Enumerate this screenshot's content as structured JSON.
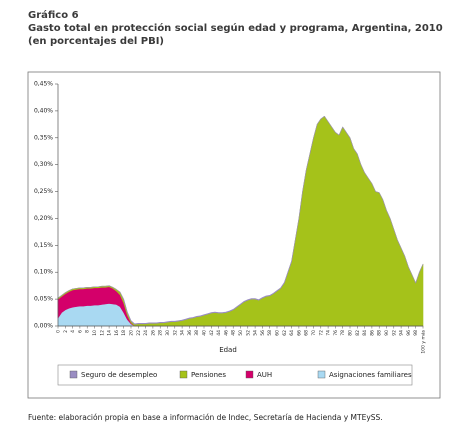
{
  "chart_data": {
    "type": "stacked-area",
    "figure_label": "Gráfico 6",
    "title": "Gasto total en protección social según edad y programa, Argentina, 2010",
    "subtitle": "(en porcentajes del PBI)",
    "xlabel": "Edad",
    "source": "Fuente: elaboración propia en base a información de Indec, Secretaría de Hacienda y MTEySS.",
    "x": [
      0,
      1,
      2,
      3,
      4,
      5,
      6,
      7,
      8,
      9,
      10,
      11,
      12,
      13,
      14,
      15,
      16,
      17,
      18,
      19,
      20,
      21,
      22,
      23,
      24,
      25,
      26,
      27,
      28,
      29,
      30,
      31,
      32,
      33,
      34,
      35,
      36,
      37,
      38,
      39,
      40,
      41,
      42,
      43,
      44,
      45,
      46,
      47,
      48,
      49,
      50,
      51,
      52,
      53,
      54,
      55,
      56,
      57,
      58,
      59,
      60,
      61,
      62,
      63,
      64,
      65,
      66,
      67,
      68,
      69,
      70,
      71,
      72,
      73,
      74,
      75,
      76,
      77,
      78,
      79,
      80,
      81,
      82,
      83,
      84,
      85,
      86,
      87,
      88,
      89,
      90,
      91,
      92,
      93,
      94,
      95,
      96,
      97,
      98,
      99,
      100
    ],
    "xlim": [
      0,
      100
    ],
    "xticks": [
      0,
      2,
      4,
      6,
      8,
      10,
      12,
      14,
      16,
      18,
      20,
      22,
      24,
      26,
      28,
      30,
      32,
      34,
      36,
      38,
      40,
      42,
      44,
      46,
      48,
      50,
      52,
      54,
      56,
      58,
      60,
      62,
      64,
      66,
      68,
      70,
      72,
      74,
      76,
      78,
      80,
      82,
      84,
      86,
      88,
      90,
      92,
      94,
      96,
      98,
      {
        "value": 100,
        "label": "100 y más"
      }
    ],
    "ylim": [
      0,
      0.45
    ],
    "yticks": [
      {
        "value": 0,
        "label": "0,00%"
      },
      {
        "value": 0.05,
        "label": "0,05%"
      },
      {
        "value": 0.1,
        "label": "0,10%"
      },
      {
        "value": 0.15,
        "label": "0,15%"
      },
      {
        "value": 0.2,
        "label": "0,20%"
      },
      {
        "value": 0.25,
        "label": "0,25%"
      },
      {
        "value": 0.3,
        "label": "0,30%"
      },
      {
        "value": 0.35,
        "label": "0,35%"
      },
      {
        "value": 0.4,
        "label": "0,40%"
      },
      {
        "value": 0.45,
        "label": "0,45%"
      }
    ],
    "grid": false,
    "legend": "bottom",
    "series": [
      {
        "name": "Seguro de desempleo",
        "color": "#9a8dc2",
        "values": [
          0,
          0,
          0,
          0,
          0,
          0,
          0,
          0,
          0,
          0,
          0,
          0,
          0,
          0,
          0,
          0,
          0,
          0,
          0.001,
          0.001,
          0.001,
          0.001,
          0.001,
          0.001,
          0.001,
          0.001,
          0.001,
          0.001,
          0.001,
          0.001,
          0.001,
          0.001,
          0.001,
          0.001,
          0.001,
          0.001,
          0.001,
          0.001,
          0.001,
          0.001,
          0.001,
          0.001,
          0.001,
          0.001,
          0.001,
          0.001,
          0.001,
          0.001,
          0.001,
          0.001,
          0.001,
          0.001,
          0.001,
          0.001,
          0.001,
          0.001,
          0.001,
          0.001,
          0.001,
          0.001,
          0.001,
          0.001,
          0.001,
          0.001,
          0.001,
          0,
          0,
          0,
          0,
          0,
          0,
          0,
          0,
          0,
          0,
          0,
          0,
          0,
          0,
          0,
          0,
          0,
          0,
          0,
          0,
          0,
          0,
          0,
          0,
          0,
          0,
          0,
          0,
          0,
          0,
          0,
          0,
          0,
          0,
          0,
          0
        ]
      },
      {
        "name": "Pensiones",
        "color": "#a5c21a",
        "values": [
          0.002,
          0.002,
          0.002,
          0.002,
          0.002,
          0.002,
          0.002,
          0.002,
          0.002,
          0.002,
          0.002,
          0.002,
          0.002,
          0.002,
          0.002,
          0.002,
          0.003,
          0.005,
          0.006,
          0.005,
          0.003,
          0.003,
          0.004,
          0.004,
          0.004,
          0.005,
          0.005,
          0.005,
          0.006,
          0.006,
          0.007,
          0.008,
          0.008,
          0.009,
          0.01,
          0.012,
          0.014,
          0.015,
          0.017,
          0.018,
          0.02,
          0.022,
          0.024,
          0.025,
          0.024,
          0.024,
          0.025,
          0.027,
          0.03,
          0.035,
          0.04,
          0.045,
          0.048,
          0.05,
          0.05,
          0.048,
          0.052,
          0.055,
          0.056,
          0.06,
          0.065,
          0.07,
          0.08,
          0.1,
          0.12,
          0.16,
          0.2,
          0.25,
          0.29,
          0.32,
          0.35,
          0.375,
          0.385,
          0.39,
          0.38,
          0.37,
          0.36,
          0.355,
          0.37,
          0.36,
          0.35,
          0.33,
          0.32,
          0.3,
          0.285,
          0.275,
          0.265,
          0.25,
          0.248,
          0.235,
          0.215,
          0.2,
          0.18,
          0.16,
          0.145,
          0.13,
          0.11,
          0.095,
          0.08,
          0.1,
          0.115
        ]
      },
      {
        "name": "AUH",
        "color": "#d4006a",
        "values": [
          0.035,
          0.03,
          0.03,
          0.031,
          0.032,
          0.032,
          0.032,
          0.032,
          0.032,
          0.032,
          0.032,
          0.032,
          0.032,
          0.031,
          0.031,
          0.029,
          0.025,
          0.022,
          0.018,
          0.008,
          0.002,
          0,
          0,
          0,
          0,
          0,
          0,
          0,
          0,
          0,
          0,
          0,
          0,
          0,
          0,
          0,
          0,
          0,
          0,
          0,
          0,
          0,
          0,
          0,
          0,
          0,
          0,
          0,
          0,
          0,
          0,
          0,
          0,
          0,
          0,
          0,
          0,
          0,
          0,
          0,
          0,
          0,
          0,
          0,
          0,
          0,
          0,
          0,
          0,
          0,
          0,
          0,
          0,
          0,
          0,
          0,
          0,
          0,
          0,
          0,
          0,
          0,
          0,
          0,
          0,
          0,
          0,
          0,
          0,
          0,
          0,
          0,
          0,
          0,
          0,
          0,
          0,
          0,
          0,
          0,
          0
        ]
      },
      {
        "name": "Asignaciones familiares",
        "color": "#a9d9f2",
        "values": [
          0.015,
          0.025,
          0.03,
          0.033,
          0.035,
          0.036,
          0.037,
          0.037,
          0.038,
          0.038,
          0.039,
          0.039,
          0.04,
          0.041,
          0.042,
          0.041,
          0.04,
          0.036,
          0.025,
          0.012,
          0.004,
          0,
          0,
          0,
          0,
          0,
          0,
          0,
          0,
          0,
          0,
          0,
          0,
          0,
          0,
          0,
          0,
          0,
          0,
          0,
          0,
          0,
          0,
          0,
          0,
          0,
          0,
          0,
          0,
          0,
          0,
          0,
          0,
          0,
          0,
          0,
          0,
          0,
          0,
          0,
          0,
          0,
          0,
          0,
          0,
          0,
          0,
          0,
          0,
          0,
          0,
          0,
          0,
          0,
          0,
          0,
          0,
          0,
          0,
          0,
          0,
          0,
          0,
          0,
          0,
          0,
          0,
          0,
          0,
          0,
          0,
          0,
          0,
          0,
          0,
          0,
          0,
          0,
          0,
          0,
          0
        ]
      }
    ]
  }
}
